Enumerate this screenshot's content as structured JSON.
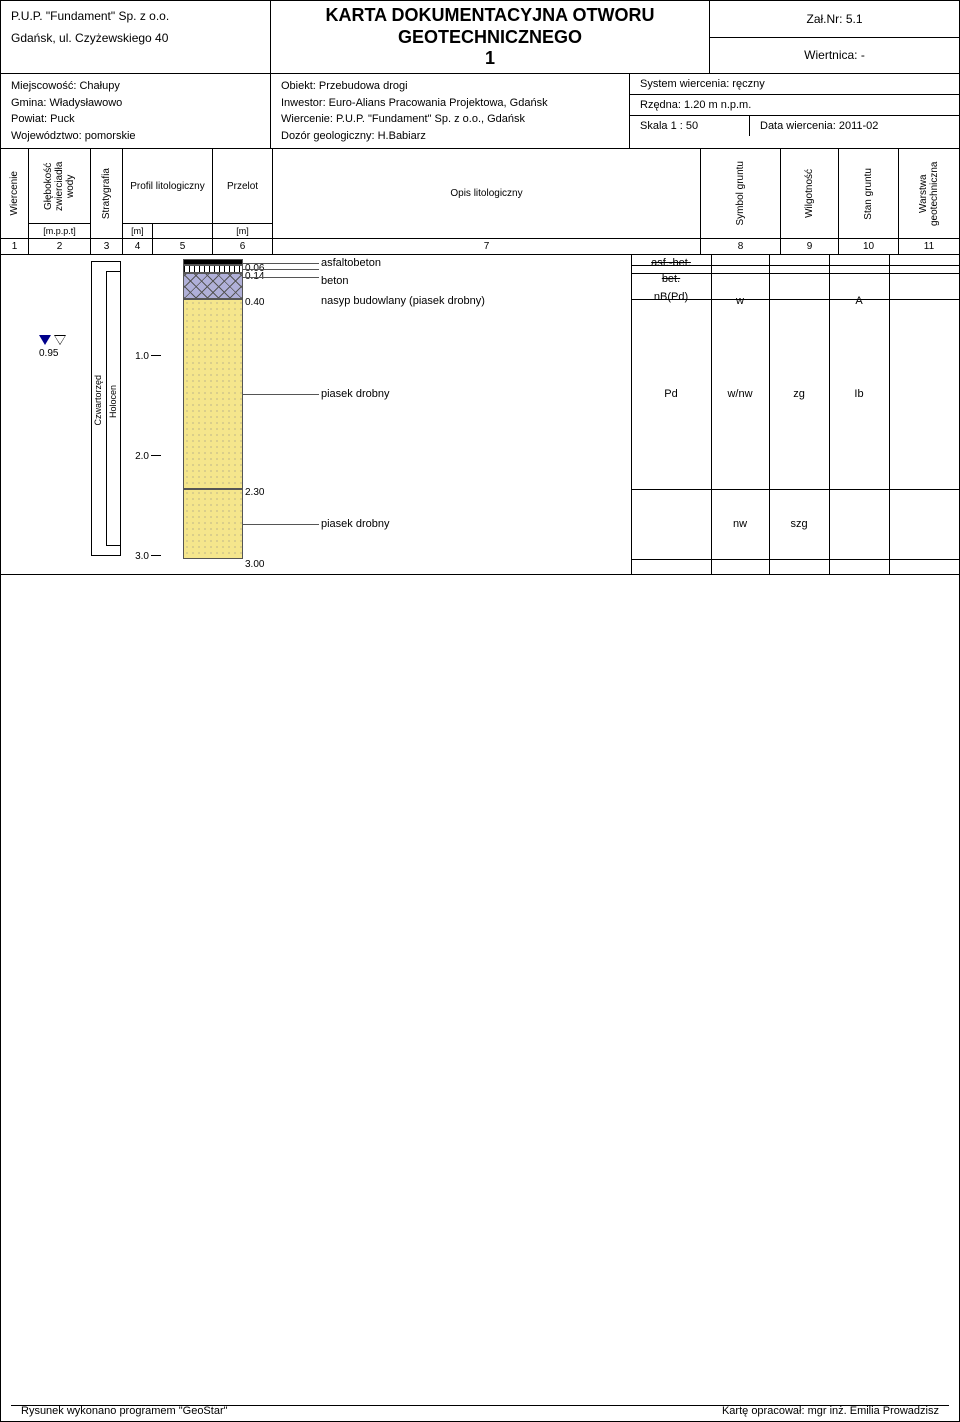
{
  "header": {
    "company": "P.U.P. \"Fundament\" Sp. z o.o.",
    "address": "Gdańsk, ul. Czyżewskiego 40",
    "title": "KARTA DOKUMENTACYJNA OTWORU GEOTECHNICZNEGO",
    "boreNum": "1",
    "attachNo": "Zał.Nr: 5.1",
    "wiertnica": "Wiertnica:  -"
  },
  "info": {
    "miejscowosc": "Miejscowość: Chałupy",
    "gmina": "Gmina: Władysławowo",
    "powiat": "Powiat: Puck",
    "wojewodztwo": "Województwo: pomorskie",
    "obiekt": "Obiekt: Przebudowa drogi",
    "inwestor": "Inwestor: Euro-Alians Pracowania Projektowa, Gdańsk",
    "wiercenie": "Wiercenie: P.U.P. \"Fundament\" Sp. z o.o., Gdańsk",
    "dozor": "Dozór geologiczny: H.Babiarz",
    "system": "System wiercenia: ręczny",
    "rzedna": "Rzędna: 1.20 m n.p.m.",
    "skala": "Skala 1 : 50",
    "data": "Data wiercenia: 2011-02"
  },
  "colHeads": {
    "c1": "Wiercenie",
    "c2": "Głębokość zwierciadła wody",
    "c2u": "[m.p.p.t]",
    "c3": "Stratygrafia",
    "c45": "Profil litologiczny",
    "c4u": "[m]",
    "c6": "Przelot",
    "c6u": "[m]",
    "c7": "Opis litologiczny",
    "c8": "Symbol gruntu",
    "c9": "Wilgotność",
    "c10": "Stan gruntu",
    "c11": "Warstwa geotechniczna"
  },
  "colNums": {
    "n1": "1",
    "n2": "2",
    "n3": "3",
    "n4": "4",
    "n5": "5",
    "n6": "6",
    "n7": "7",
    "n8": "8",
    "n9": "9",
    "n10": "10",
    "n11": "11"
  },
  "scale": {
    "pxPerM": 100,
    "ticks": [
      1.0,
      2.0,
      3.0
    ]
  },
  "water": {
    "depth": "0.95"
  },
  "strat": {
    "outer": "Czwartorzęd",
    "inner": "Holocen"
  },
  "layers": [
    {
      "from": 0.0,
      "to": 0.06,
      "pattern": "black",
      "przelot": "",
      "desc": "asfaltobeton",
      "symbol": "asf.-bet.",
      "wilg": "",
      "stan": "",
      "warstwa": ""
    },
    {
      "from": 0.06,
      "to": 0.14,
      "pattern": "hatch",
      "przelot": "0.06",
      "desc": "beton",
      "symbol": "bet.",
      "wilg": "",
      "stan": "",
      "warstwa": ""
    },
    {
      "from": 0.14,
      "to": 0.4,
      "pattern": "brick",
      "przelot": "0.14",
      "desc": "nasyp budowlany (piasek drobny)",
      "symbol": "nB(Pd)",
      "wilg": "w",
      "stan": "",
      "warstwa": "A"
    },
    {
      "from": 0.4,
      "to": 2.3,
      "pattern": "sand",
      "przelot": "0.40",
      "desc": "piasek drobny",
      "symbol": "Pd",
      "wilg": "w/nw",
      "stan": "zg",
      "warstwa": "Ib"
    },
    {
      "from": 2.3,
      "to": 3.0,
      "pattern": "sand",
      "przelot": "2.30",
      "desc": "piasek drobny",
      "symbol": "",
      "wilg": "nw",
      "stan": "szg",
      "warstwa": ""
    }
  ],
  "bottomDepth": "3.00",
  "footer": {
    "left": "Rysunek wykonano programem \"GeoStar\"",
    "right": "Kartę opracował: mgr inż. Emilia Prowadzisz"
  },
  "colX": {
    "c8": 630,
    "c9": 710,
    "c10": 768,
    "c11": 828
  }
}
